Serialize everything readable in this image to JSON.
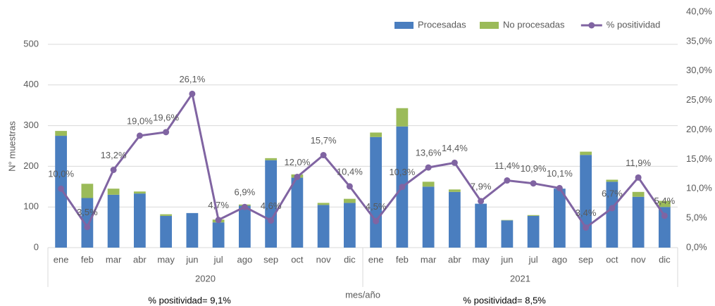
{
  "chart_data": {
    "type": "bar-line",
    "y_label": "N° muestras",
    "x_label": "mes/año",
    "categories": [
      "ene",
      "feb",
      "mar",
      "abr",
      "may",
      "jun",
      "jul",
      "ago",
      "sep",
      "oct",
      "nov",
      "dic",
      "ene",
      "feb",
      "mar",
      "abr",
      "may",
      "jun",
      "jul",
      "ago",
      "sep",
      "oct",
      "nov",
      "dic"
    ],
    "groups": [
      "2020",
      "2021"
    ],
    "annotations": [
      "% positividad= 9,1%",
      "% positividad= 8,5%"
    ],
    "series": [
      {
        "name": "Procesadas",
        "color": "#4a7ebf",
        "type": "bar",
        "values": [
          275,
          122,
          130,
          133,
          78,
          85,
          62,
          103,
          215,
          172,
          105,
          110,
          272,
          298,
          150,
          137,
          108,
          67,
          78,
          145,
          228,
          162,
          125,
          100
        ]
      },
      {
        "name": "No procesadas",
        "color": "#9bbb59",
        "type": "bar",
        "values": [
          12,
          35,
          15,
          5,
          4,
          0,
          7,
          3,
          5,
          8,
          5,
          10,
          11,
          45,
          12,
          6,
          0,
          1,
          2,
          0,
          8,
          5,
          12,
          15
        ]
      },
      {
        "name": "%  positividad",
        "color": "#8064a2",
        "type": "line",
        "axis": "y2",
        "values": [
          10.0,
          3.5,
          13.2,
          19.0,
          19.6,
          26.1,
          4.7,
          6.9,
          4.6,
          12.0,
          15.7,
          10.4,
          4.5,
          10.3,
          13.6,
          14.4,
          7.9,
          11.4,
          10.9,
          10.1,
          3.4,
          6.7,
          11.9,
          5.4
        ],
        "value_labels": [
          "10,0%",
          "3,5%",
          "13,2%",
          "19,0%",
          "19,6%",
          "26,1%",
          "4,7%",
          "6,9%",
          "4,6%",
          "12,0%",
          "15,7%",
          "10,4%",
          "4,5%",
          "10,3%",
          "13,6%",
          "14,4%",
          "7,9%",
          "11,4%",
          "10,9%",
          "10,1%",
          "3,4%",
          "6,7%",
          "11,9%",
          "5,4%"
        ]
      }
    ],
    "ylim": [
      0,
      500
    ],
    "yticks": [
      0,
      100,
      200,
      300,
      400,
      500
    ],
    "y2lim": [
      0,
      40
    ],
    "y2ticks": [
      {
        "value": 0,
        "label": "0,0%"
      },
      {
        "value": 5,
        "label": "5,0%"
      },
      {
        "value": 10,
        "label": "10,0%"
      },
      {
        "value": 15,
        "label": "15,0%"
      },
      {
        "value": 20,
        "label": "20,0%"
      },
      {
        "value": 25,
        "label": "25,0%"
      },
      {
        "value": 30,
        "label": "30,0%"
      },
      {
        "value": 35,
        "label": "35,0%"
      },
      {
        "value": 40,
        "label": "40,0%"
      }
    ],
    "grid": true,
    "legend": "top"
  }
}
